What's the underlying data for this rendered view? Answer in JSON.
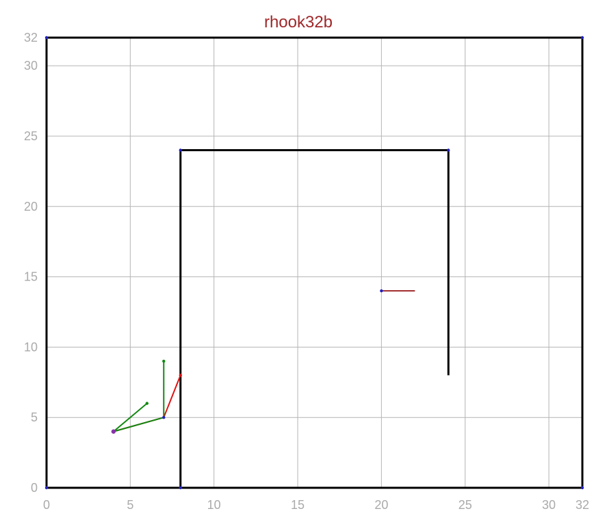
{
  "title": "rhook32b",
  "colors": {
    "title": "#a0282a",
    "grid": "#b4b4b4",
    "tick_label": "#aaaaaa",
    "wall": "#000000",
    "vertex": "#2020c0",
    "red_path": "#dd1111",
    "green_path": "#118811",
    "goal_segment": "#a0282a",
    "start_marker": "#8833aa"
  },
  "chart_data": {
    "type": "diagram",
    "xlim": [
      0,
      32
    ],
    "ylim": [
      0,
      32
    ],
    "grid": true,
    "x_ticks": [
      {
        "value": 0,
        "label": "0"
      },
      {
        "value": 5,
        "label": "5"
      },
      {
        "value": 10,
        "label": "10"
      },
      {
        "value": 15,
        "label": "15"
      },
      {
        "value": 20,
        "label": "20"
      },
      {
        "value": 25,
        "label": "25"
      },
      {
        "value": 30,
        "label": "30"
      },
      {
        "value": 32,
        "label": "32"
      }
    ],
    "y_ticks": [
      {
        "value": 0,
        "label": "0"
      },
      {
        "value": 5,
        "label": "5"
      },
      {
        "value": 10,
        "label": "10"
      },
      {
        "value": 15,
        "label": "15"
      },
      {
        "value": 20,
        "label": "20"
      },
      {
        "value": 25,
        "label": "25"
      },
      {
        "value": 30,
        "label": "30"
      },
      {
        "value": 32,
        "label": "32"
      }
    ],
    "walls": [
      {
        "name": "wall-boundary",
        "points": [
          [
            0,
            0
          ],
          [
            32,
            0
          ],
          [
            32,
            32
          ],
          [
            0,
            32
          ],
          [
            0,
            0
          ]
        ],
        "vertices": [
          [
            0,
            0
          ],
          [
            32,
            0
          ],
          [
            32,
            32
          ],
          [
            0,
            32
          ]
        ]
      },
      {
        "name": "wall-hook",
        "points": [
          [
            8,
            0
          ],
          [
            8,
            24
          ],
          [
            24,
            24
          ],
          [
            24,
            8
          ]
        ],
        "vertices": [
          [
            8,
            0
          ],
          [
            8,
            24
          ],
          [
            24,
            24
          ]
        ]
      }
    ],
    "goal_segment": {
      "points": [
        [
          20,
          14
        ],
        [
          22,
          14
        ]
      ],
      "vertices": [
        [
          20,
          14
        ]
      ]
    },
    "paths": [
      {
        "name": "red-path",
        "color_key": "red_path",
        "points": [
          [
            4,
            4
          ],
          [
            7,
            5
          ],
          [
            8,
            8
          ]
        ],
        "vertices": [
          [
            7,
            5
          ],
          [
            8,
            8
          ]
        ]
      },
      {
        "name": "green-path",
        "color_key": "green_path",
        "points": [
          [
            7,
            9
          ],
          [
            7,
            5
          ],
          [
            4,
            4
          ],
          [
            6,
            6
          ]
        ],
        "vertices": [
          [
            7,
            9
          ],
          [
            6,
            6
          ]
        ]
      }
    ],
    "start_marker": [
      4,
      4
    ]
  }
}
